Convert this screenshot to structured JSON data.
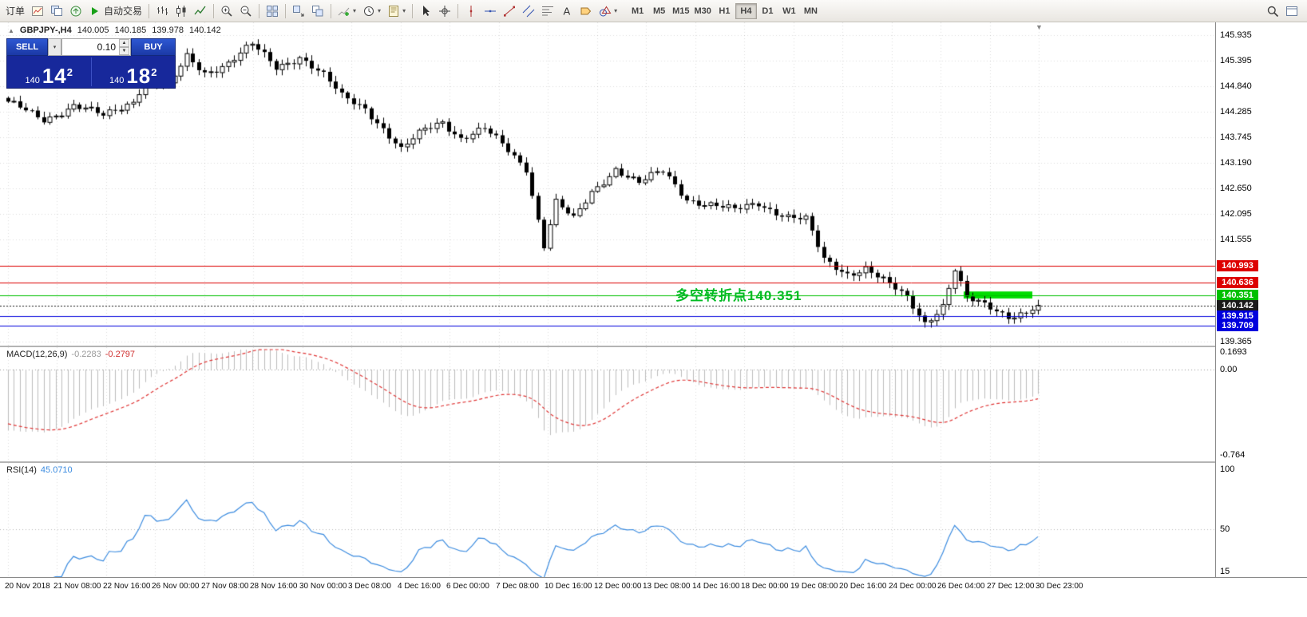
{
  "toolbar": {
    "dropdown_glyph": "▾",
    "groups": [
      {
        "items": [
          {
            "name": "new-order-button",
            "label": "订单"
          },
          {
            "name": "new-chart-icon",
            "icon": "newchart"
          },
          {
            "name": "profiles-icon",
            "icon": "profiles"
          },
          {
            "name": "market-watch-icon",
            "icon": "market"
          },
          {
            "name": "autotrading-button",
            "icon": "play",
            "label": "自动交易"
          }
        ]
      },
      {
        "items": [
          {
            "name": "bar-chart-icon",
            "icon": "bars"
          },
          {
            "name": "candlestick-chart-icon",
            "icon": "candles"
          },
          {
            "name": "line-chart-icon",
            "icon": "linechart"
          }
        ]
      },
      {
        "items": [
          {
            "name": "zoom-in-icon",
            "icon": "zoomin"
          },
          {
            "name": "zoom-out-icon",
            "icon": "zoomout"
          }
        ]
      },
      {
        "items": [
          {
            "name": "tile-windows-icon",
            "icon": "tile"
          }
        ]
      },
      {
        "items": [
          {
            "name": "auto-arrange-icon",
            "icon": "arrange"
          },
          {
            "name": "cascade-windows-icon",
            "icon": "cascade"
          }
        ]
      },
      {
        "items": [
          {
            "name": "add-indicator-icon",
            "icon": "addind",
            "dropdown": true
          },
          {
            "name": "periods-icon",
            "icon": "clock",
            "dropdown": true
          },
          {
            "name": "templates-icon",
            "icon": "template",
            "dropdown": true
          }
        ]
      },
      {
        "items": [
          {
            "name": "cursor-icon",
            "icon": "cursor"
          },
          {
            "name": "crosshair-icon",
            "icon": "crosshair"
          }
        ]
      },
      {
        "items": [
          {
            "name": "vertical-line-icon",
            "icon": "vline"
          },
          {
            "name": "horizontal-line-icon",
            "icon": "hline"
          },
          {
            "name": "trendline-icon",
            "icon": "trendline"
          },
          {
            "name": "channel-icon",
            "icon": "channel"
          },
          {
            "name": "fibonacci-icon",
            "icon": "fibo"
          },
          {
            "name": "text-icon",
            "icon": "text"
          },
          {
            "name": "arrow-label-icon",
            "icon": "label"
          },
          {
            "name": "shapes-icon",
            "icon": "shapes",
            "dropdown": true
          }
        ]
      }
    ],
    "timeframes": [
      "M1",
      "M5",
      "M15",
      "M30",
      "H1",
      "H4",
      "D1",
      "W1",
      "MN"
    ],
    "active_timeframe": "H4",
    "right_icons": [
      {
        "name": "search-icon",
        "icon": "search"
      },
      {
        "name": "window-list-icon",
        "icon": "windows"
      }
    ]
  },
  "chart": {
    "symbol": "GBPJPY-,H4",
    "ohlc": {
      "open": "140.005",
      "high": "140.185",
      "low": "139.978",
      "close": "140.142"
    },
    "symbol_marker_glyph": "▲",
    "shift_marker_glyph": "▼",
    "one_click": {
      "sell_label": "SELL",
      "buy_label": "BUY",
      "volume": "0.10",
      "menu_glyph": "▾",
      "spinner_up_glyph": "▲",
      "spinner_down_glyph": "▼",
      "sell_price": {
        "prefix": "140",
        "big": "14",
        "sup": "2"
      },
      "buy_price": {
        "prefix": "140",
        "big": "18",
        "sup": "2"
      }
    },
    "annotation": "多空转折点140.351",
    "levels": [
      {
        "price": "140.993",
        "value": 140.993,
        "color": "#dd0000",
        "type": "resistance"
      },
      {
        "price": "140.636",
        "value": 140.636,
        "color": "#dd0000",
        "type": "resistance"
      },
      {
        "price": "140.351",
        "value": 140.351,
        "color": "#00c000",
        "type": "pivot"
      },
      {
        "price": "140.142",
        "value": 140.142,
        "color": "#1a1a1a",
        "type": "current"
      },
      {
        "price": "139.915",
        "value": 139.915,
        "color": "#0000dd",
        "type": "support"
      },
      {
        "price": "139.709",
        "value": 139.709,
        "color": "#0000dd",
        "type": "support"
      }
    ],
    "price_axis": [
      "145.935",
      "145.395",
      "144.840",
      "144.285",
      "143.745",
      "143.190",
      "142.650",
      "142.095",
      "141.555",
      "139.365"
    ],
    "time_axis": [
      "20 Nov 2018",
      "21 Nov 08:00",
      "22 Nov 16:00",
      "26 Nov 00:00",
      "27 Nov 08:00",
      "28 Nov 16:00",
      "30 Nov 00:00",
      "3 Dec 08:00",
      "4 Dec 16:00",
      "6 Dec 00:00",
      "7 Dec 08:00",
      "10 Dec 16:00",
      "12 Dec 00:00",
      "13 Dec 08:00",
      "14 Dec 16:00",
      "18 Dec 00:00",
      "19 Dec 08:00",
      "20 Dec 16:00",
      "24 Dec 00:00",
      "26 Dec 04:00",
      "27 Dec 12:00",
      "30 Dec 23:00"
    ]
  },
  "macd": {
    "name": "MACD(12,26,9)",
    "main_value": "-0.2283",
    "signal_value": "-0.2797",
    "scale": [
      "0.1693",
      "0.00",
      "-0.764"
    ]
  },
  "rsi": {
    "name": "RSI(14)",
    "value": "45.0710",
    "scale": [
      "100",
      "50",
      "15"
    ]
  },
  "chart_data": {
    "type": "candlestick",
    "symbol": "GBPJPY",
    "timeframe": "H4",
    "title": "GBPJPY- H4 candlestick chart with MACD and RSI",
    "y_range": [
      139.365,
      145.935
    ],
    "visible_range": {
      "first": "20 Nov 2018",
      "last": "30 Dec 23:00"
    },
    "candle_count": 174,
    "price_keypoints": [
      [
        0,
        144.45
      ],
      [
        6,
        144.15
      ],
      [
        11,
        144.42
      ],
      [
        16,
        144.18
      ],
      [
        21,
        144.55
      ],
      [
        23,
        145.0
      ],
      [
        27,
        144.8
      ],
      [
        30,
        145.45
      ],
      [
        33,
        145.15
      ],
      [
        37,
        145.35
      ],
      [
        41,
        145.7
      ],
      [
        45,
        145.25
      ],
      [
        49,
        145.5
      ],
      [
        53,
        145.05
      ],
      [
        56,
        144.6
      ],
      [
        60,
        144.4
      ],
      [
        63,
        143.95
      ],
      [
        66,
        143.45
      ],
      [
        70,
        143.9
      ],
      [
        73,
        144.1
      ],
      [
        76,
        143.75
      ],
      [
        80,
        143.9
      ],
      [
        84,
        143.45
      ],
      [
        87,
        143.1
      ],
      [
        90,
        141.45
      ],
      [
        92,
        142.35
      ],
      [
        95,
        141.95
      ],
      [
        98,
        142.55
      ],
      [
        102,
        143.1
      ],
      [
        106,
        142.75
      ],
      [
        110,
        143.0
      ],
      [
        114,
        142.45
      ],
      [
        118,
        142.3
      ],
      [
        122,
        142.15
      ],
      [
        126,
        142.35
      ],
      [
        131,
        142.05
      ],
      [
        134,
        141.95
      ],
      [
        137,
        141.1
      ],
      [
        141,
        140.85
      ],
      [
        144,
        140.95
      ],
      [
        148,
        140.55
      ],
      [
        151,
        140.3
      ],
      [
        154,
        139.8
      ],
      [
        157,
        140.15
      ],
      [
        159,
        140.9
      ],
      [
        161,
        140.25
      ],
      [
        165,
        140.1
      ],
      [
        168,
        139.95
      ],
      [
        171,
        140.0
      ],
      [
        173,
        140.142
      ]
    ],
    "highlight_box": {
      "price_top": 140.44,
      "price_bottom": 140.29,
      "color": "#00dd00"
    },
    "indicators": [
      {
        "name": "MACD",
        "params": [
          12,
          26,
          9
        ],
        "values": [
          -0.2283,
          -0.2797
        ]
      },
      {
        "name": "RSI",
        "params": [
          14
        ],
        "value": 45.071
      }
    ]
  }
}
